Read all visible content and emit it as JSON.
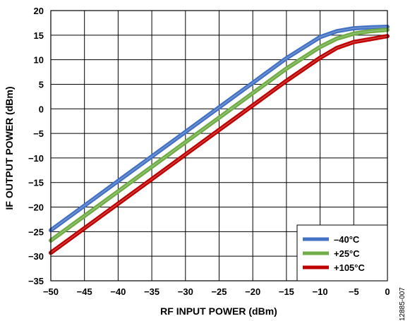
{
  "chart_data": {
    "type": "line",
    "xlabel": "RF INPUT POWER (dBm)",
    "ylabel": "IF OUTPUT POWER (dBm)",
    "xlim": [
      -50,
      0
    ],
    "ylim": [
      -35,
      20
    ],
    "xticks": [
      -50,
      -45,
      -40,
      -35,
      -30,
      -25,
      -20,
      -15,
      -10,
      -5,
      0
    ],
    "yticks": [
      20,
      15,
      10,
      5,
      0,
      -5,
      -10,
      -15,
      -20,
      -25,
      -30,
      -35
    ],
    "grid": true,
    "legend_position": "bottom-right",
    "figure_id": "12885-007",
    "series": [
      {
        "name": "–40°C",
        "color": "#4472c4",
        "x": [
          -50,
          -45,
          -40,
          -35,
          -30,
          -25,
          -20,
          -15,
          -10,
          -7.5,
          -5,
          -2.5,
          0
        ],
        "y": [
          -24.7,
          -19.7,
          -14.7,
          -9.7,
          -4.7,
          0.3,
          5.3,
          10.3,
          14.6,
          15.8,
          16.4,
          16.6,
          16.7
        ]
      },
      {
        "name": "+25°C",
        "color": "#70ad47",
        "x": [
          -50,
          -45,
          -40,
          -35,
          -30,
          -25,
          -20,
          -15,
          -10,
          -7.5,
          -5,
          -2.5,
          0
        ],
        "y": [
          -26.8,
          -21.8,
          -16.8,
          -11.8,
          -6.8,
          -1.8,
          3.2,
          8.2,
          12.6,
          14.3,
          15.3,
          15.8,
          16.1
        ]
      },
      {
        "name": "+105°C",
        "color": "#c00000",
        "x": [
          -50,
          -45,
          -40,
          -35,
          -30,
          -25,
          -20,
          -15,
          -10,
          -7.5,
          -5,
          -2.5,
          0
        ],
        "y": [
          -29.3,
          -24.3,
          -19.3,
          -14.3,
          -9.3,
          -4.3,
          0.7,
          5.7,
          10.4,
          12.4,
          13.6,
          14.2,
          14.8
        ]
      }
    ]
  }
}
